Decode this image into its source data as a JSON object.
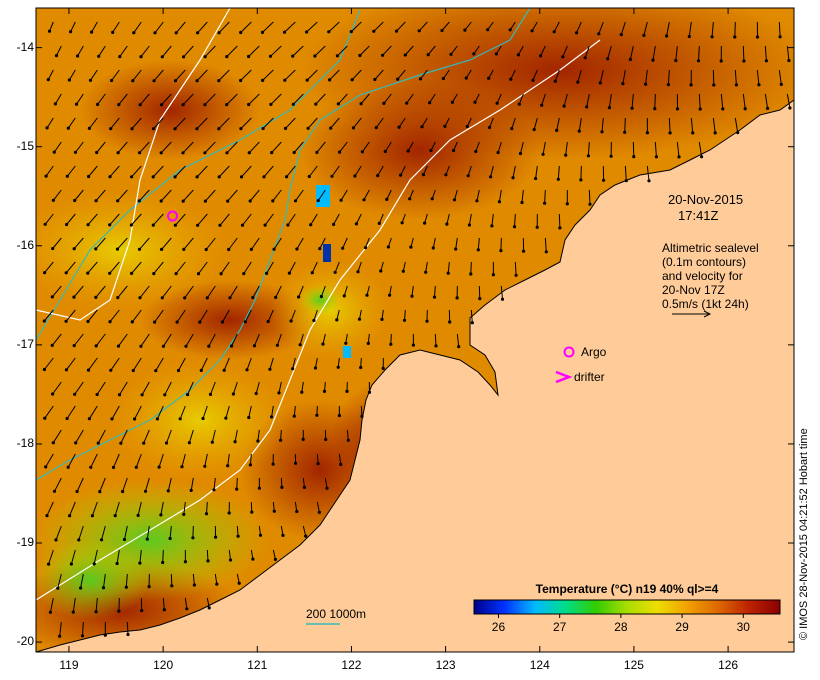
{
  "map": {
    "lat_ticks": [
      "-14",
      "-15",
      "-16",
      "-17",
      "-18",
      "-19",
      "-20"
    ],
    "lon_ticks": [
      "119",
      "120",
      "121",
      "122",
      "123",
      "124",
      "125",
      "126"
    ],
    "lat_range": [
      -20.1,
      -13.6
    ],
    "lon_range": [
      118.65,
      126.7
    ]
  },
  "annotations": {
    "date": "20-Nov-2015",
    "time": "17:41Z",
    "altimetry_line1": "Altimetric sealevel",
    "altimetry_line2": "(0.1m contours)",
    "altimetry_line3": "and velocity for",
    "altimetry_line4": "20-Nov 17Z",
    "altimetry_line5": "0.5m/s (1kt 24h)",
    "argo_label": "Argo",
    "drifter_label": "drifter",
    "bathy_label": "200  1000m",
    "credit": "© IMOS 28-Nov-2015 04:21:52 Hobart time"
  },
  "colorbar": {
    "title": "Temperature (°C) n19 40% ql>=4",
    "ticks": [
      "26",
      "27",
      "28",
      "29",
      "30"
    ],
    "range": [
      25.6,
      30.6
    ]
  },
  "colors": {
    "land": "#FFCC99",
    "coast": "#000000",
    "contour_200m": "#33BBBB",
    "contour_1000m": "#FFFFFF",
    "argo": "#FF00FF",
    "drifter": "#FF00FF",
    "colormap": [
      "#00008B",
      "#0033FF",
      "#00BBFF",
      "#00DD88",
      "#33CC00",
      "#AADD00",
      "#EEDD00",
      "#F0A000",
      "#DD6600",
      "#BB2200",
      "#8B0000"
    ]
  },
  "markers": {
    "argo_float": {
      "lon": 120.1,
      "lat": -15.7
    }
  }
}
